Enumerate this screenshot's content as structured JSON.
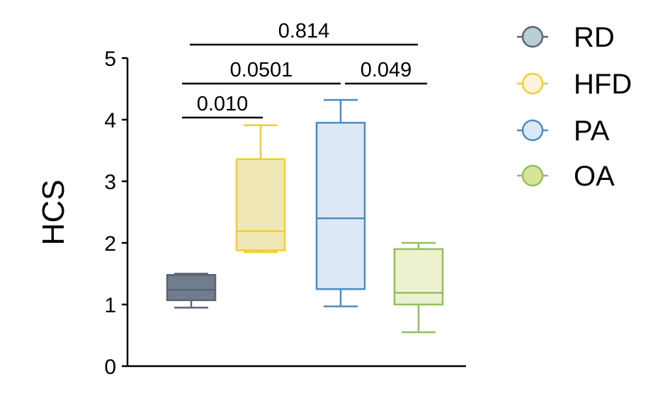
{
  "chart_data": {
    "type": "box",
    "ylabel": "HCS",
    "ylim": [
      0,
      5
    ],
    "yticks": [
      0,
      1,
      2,
      3,
      4,
      5
    ],
    "grid": false,
    "legend_position": "top-right",
    "series": [
      {
        "name": "RD",
        "whisker_low": 0.95,
        "q1": 1.07,
        "median": 1.24,
        "q3": 1.48,
        "whisker_high": 1.5,
        "stroke": "#5a6472",
        "fill": "#6f7d8c",
        "marker_fill": "#b7cfd2"
      },
      {
        "name": "HFD",
        "whisker_low": 1.85,
        "q1": 1.88,
        "median": 2.19,
        "q3": 3.36,
        "whisker_high": 3.91,
        "stroke": "#f2cf2a",
        "fill": "#efe8b6",
        "marker_fill": "#fbf3dc"
      },
      {
        "name": "PA",
        "whisker_low": 0.97,
        "q1": 1.25,
        "median": 2.4,
        "q3": 3.95,
        "whisker_high": 4.32,
        "stroke": "#4d8bc0",
        "fill": "#dce8f5",
        "marker_fill": "#dbe8f5"
      },
      {
        "name": "OA",
        "whisker_low": 0.55,
        "q1": 1.0,
        "median": 1.19,
        "q3": 1.9,
        "whisker_high": 2.0,
        "stroke": "#92bf5e",
        "fill": "#edf1cf",
        "marker_fill": "#d7e49a"
      }
    ],
    "comparisons": [
      {
        "from": 0,
        "to": 1,
        "label": "0.010"
      },
      {
        "from": 0,
        "to": 2,
        "label": "0.0501"
      },
      {
        "from": 2,
        "to": 3,
        "label": "0.049"
      },
      {
        "from": 0,
        "to": 3,
        "label": "0.814"
      }
    ]
  }
}
